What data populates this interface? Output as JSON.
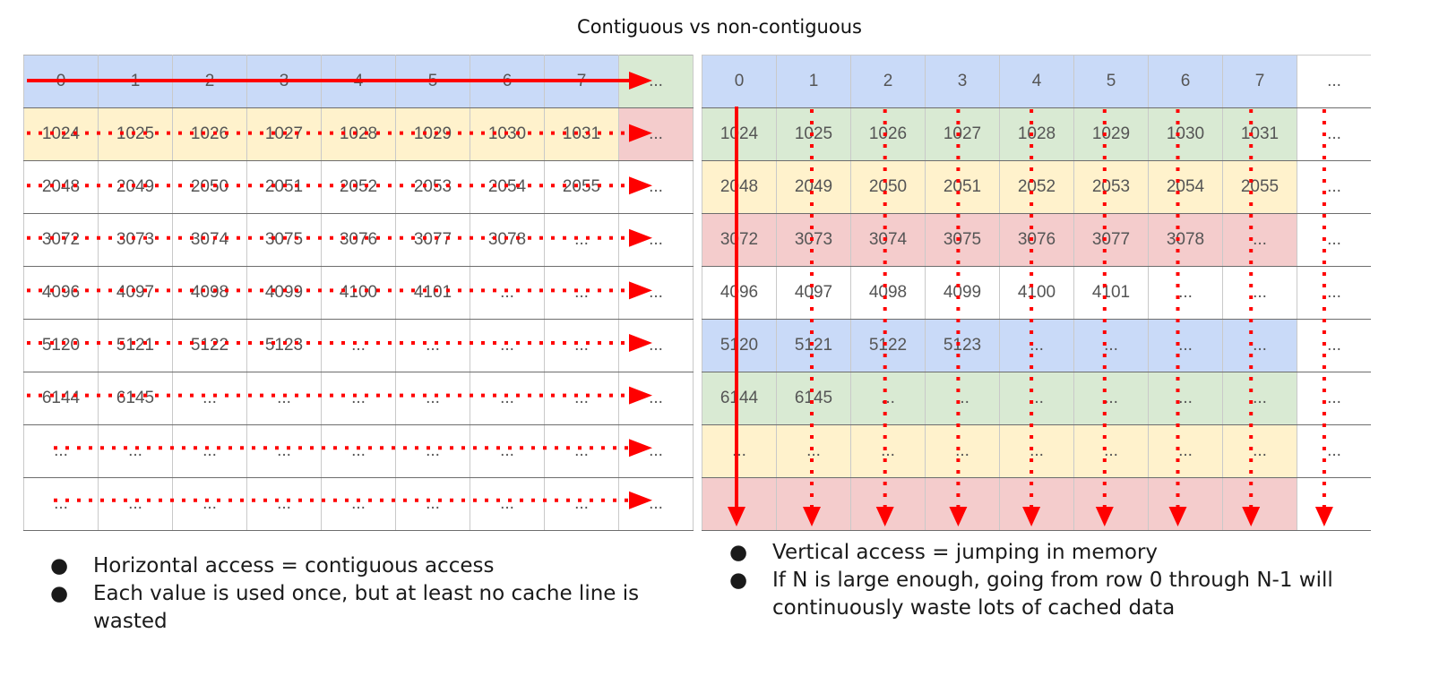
{
  "title": "Contiguous vs non-contiguous",
  "left": {
    "rows": [
      {
        "cells": [
          "0",
          "1",
          "2",
          "3",
          "4",
          "5",
          "6",
          "7",
          "..."
        ],
        "color": "blue",
        "last_color": "green"
      },
      {
        "cells": [
          "1024",
          "1025",
          "1026",
          "1027",
          "1028",
          "1029",
          "1030",
          "1031",
          "..."
        ],
        "color": "yellow",
        "last_color": "red"
      },
      {
        "cells": [
          "2048",
          "2049",
          "2050",
          "2051",
          "2052",
          "2053",
          "2054",
          "2055",
          "..."
        ],
        "color": "white",
        "last_color": "white"
      },
      {
        "cells": [
          "3072",
          "3073",
          "3074",
          "3075",
          "3076",
          "3077",
          "3078",
          "...",
          "..."
        ],
        "color": "white",
        "last_color": "white"
      },
      {
        "cells": [
          "4096",
          "4097",
          "4098",
          "4099",
          "4100",
          "4101",
          "...",
          "...",
          "..."
        ],
        "color": "white",
        "last_color": "white"
      },
      {
        "cells": [
          "5120",
          "5121",
          "5122",
          "5123",
          "...",
          "...",
          "...",
          "...",
          "..."
        ],
        "color": "white",
        "last_color": "white"
      },
      {
        "cells": [
          "6144",
          "6145",
          "...",
          "...",
          "...",
          "...",
          "...",
          "...",
          "..."
        ],
        "color": "white",
        "last_color": "white"
      },
      {
        "cells": [
          "...",
          "...",
          "...",
          "...",
          "...",
          "...",
          "...",
          "...",
          "..."
        ],
        "color": "white",
        "last_color": "white"
      },
      {
        "cells": [
          "...",
          "...",
          "...",
          "...",
          "...",
          "...",
          "...",
          "...",
          "..."
        ],
        "color": "white",
        "last_color": "white"
      }
    ],
    "bullets": [
      "Horizontal access = contiguous access",
      "Each value is used once, but at least no cache line is wasted"
    ]
  },
  "right": {
    "rows": [
      {
        "cells": [
          "0",
          "1",
          "2",
          "3",
          "4",
          "5",
          "6",
          "7",
          "..."
        ],
        "color": "blue",
        "last_color": "white"
      },
      {
        "cells": [
          "1024",
          "1025",
          "1026",
          "1027",
          "1028",
          "1029",
          "1030",
          "1031",
          "..."
        ],
        "color": "green",
        "last_color": "white"
      },
      {
        "cells": [
          "2048",
          "2049",
          "2050",
          "2051",
          "2052",
          "2053",
          "2054",
          "2055",
          "..."
        ],
        "color": "yellow",
        "last_color": "white"
      },
      {
        "cells": [
          "3072",
          "3073",
          "3074",
          "3075",
          "3076",
          "3077",
          "3078",
          "...",
          "..."
        ],
        "color": "red",
        "last_color": "white"
      },
      {
        "cells": [
          "4096",
          "4097",
          "4098",
          "4099",
          "4100",
          "4101",
          "...",
          "...",
          "..."
        ],
        "color": "white",
        "last_color": "white"
      },
      {
        "cells": [
          "5120",
          "5121",
          "5122",
          "5123",
          "...",
          "...",
          "...",
          "...",
          "..."
        ],
        "color": "blue",
        "last_color": "white"
      },
      {
        "cells": [
          "6144",
          "6145",
          "...",
          "...",
          "...",
          "...",
          "...",
          "...",
          "..."
        ],
        "color": "green",
        "last_color": "white"
      },
      {
        "cells": [
          "...",
          "...",
          "...",
          "...",
          "...",
          "...",
          "...",
          "...",
          "..."
        ],
        "color": "yellow",
        "last_color": "white"
      },
      {
        "cells": [
          "",
          "",
          "",
          "",
          "",
          "",
          "",
          "",
          ""
        ],
        "color": "red",
        "last_color": "white"
      }
    ],
    "bullets": [
      "Vertical access = jumping in memory",
      "If N is large enough, going from row 0 through N-1 will continuously waste lots of cached data"
    ]
  },
  "colors": {
    "blue": "#c9daf8",
    "green": "#d9ead3",
    "yellow": "#fff2cc",
    "red": "#f4cccc",
    "white": "#ffffff",
    "arrow": "#ff0000"
  },
  "bullet_glyph": "●"
}
